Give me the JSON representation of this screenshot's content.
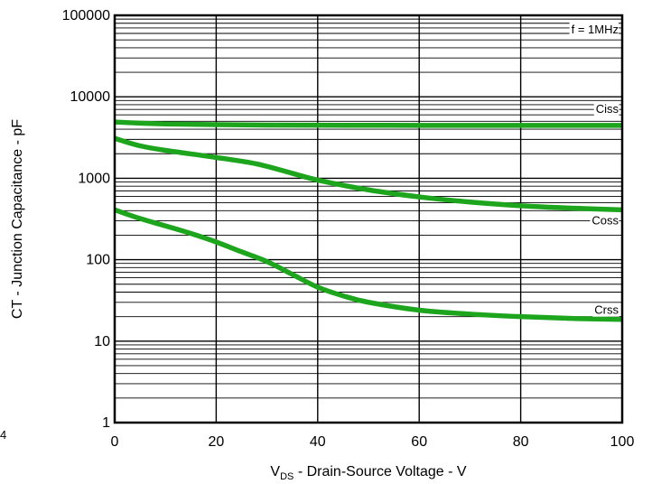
{
  "chart_data": {
    "type": "line",
    "title": "",
    "xlabel_main": "V",
    "xlabel_sub": "DS",
    "xlabel_rest": " - Drain-Source Voltage - V",
    "ylabel": "CT - Junction Capacitance - pF",
    "annotation": "f = 1MHz",
    "xlim": [
      0,
      100
    ],
    "ylim": [
      1,
      100000
    ],
    "yscale": "log",
    "grid": true,
    "x_ticks": [
      "0",
      "20",
      "40",
      "60",
      "80",
      "100"
    ],
    "y_ticks": [
      "1",
      "10",
      "100",
      "1000",
      "10000",
      "100000"
    ],
    "line_color": "#1ea51e",
    "series": [
      {
        "name": "Ciss",
        "x": [
          0,
          5,
          10,
          20,
          30,
          40,
          50,
          60,
          70,
          80,
          90,
          100
        ],
        "y": [
          4900,
          4750,
          4650,
          4550,
          4500,
          4480,
          4470,
          4460,
          4455,
          4450,
          4450,
          4450
        ]
      },
      {
        "name": "Coss",
        "x": [
          0,
          1,
          5,
          10,
          20,
          28,
          35,
          40,
          50,
          60,
          70,
          80,
          90,
          100
        ],
        "y": [
          3100,
          2950,
          2500,
          2200,
          1800,
          1500,
          1150,
          950,
          720,
          590,
          510,
          460,
          430,
          410
        ]
      },
      {
        "name": "Crss",
        "x": [
          0,
          2,
          5,
          10,
          15,
          20,
          25,
          30,
          35,
          40,
          45,
          50,
          60,
          70,
          80,
          90,
          100
        ],
        "y": [
          410,
          370,
          320,
          260,
          210,
          165,
          125,
          95,
          66,
          46,
          36,
          30,
          24,
          21.5,
          20,
          19,
          18.5
        ]
      }
    ]
  },
  "stray_label": "4"
}
